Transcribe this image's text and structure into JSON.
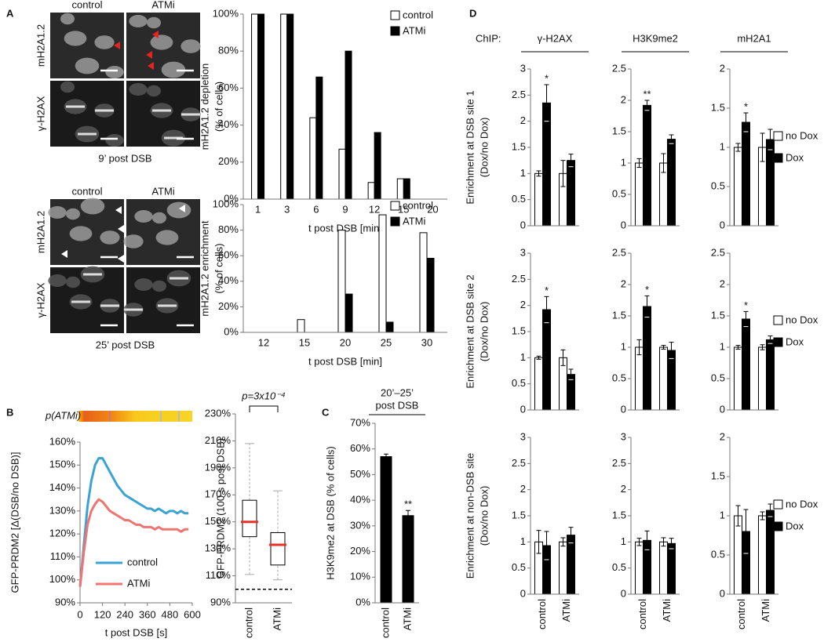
{
  "panel_labels": [
    "A",
    "B",
    "C",
    "D"
  ],
  "micrographs": [
    {
      "columns": [
        "control",
        "ATMi"
      ],
      "rows": [
        "mH2A1.2",
        "γ-H2AX"
      ],
      "caption": "9’ post DSB"
    },
    {
      "columns": [
        "control",
        "ATMi"
      ],
      "rows": [
        "mH2A1.2",
        "γ-H2AX"
      ],
      "caption": "25’ post DSB"
    }
  ],
  "panel_d": {
    "prefix": "ChIP:",
    "columns": [
      "γ-H2AX",
      "H3K9me2",
      "mH2A1"
    ]
  },
  "chart_data": [
    {
      "type": "bar",
      "ylabel": [
        "mH2A1.2 depletion",
        "(% of cells)"
      ],
      "xlabel": "t post DSB [min]",
      "categories": [
        "1",
        "3",
        "6",
        "9",
        "12",
        "15",
        "20"
      ],
      "series": [
        {
          "name": "control",
          "color": "#ffffff",
          "values": [
            100,
            100,
            44,
            27,
            9,
            11,
            0
          ]
        },
        {
          "name": "ATMi",
          "color": "#000000",
          "values": [
            100,
            100,
            66,
            80,
            36,
            11,
            0
          ]
        }
      ],
      "ylim": [
        0,
        100
      ],
      "yticks": [
        {
          "value": 0,
          "label": "0%"
        },
        {
          "value": 20,
          "label": "20%"
        },
        {
          "value": 40,
          "label": "40%"
        },
        {
          "value": 60,
          "label": "60%"
        },
        {
          "value": 80,
          "label": "80%"
        },
        {
          "value": 100,
          "label": "100%"
        }
      ],
      "legend": "upper right"
    },
    {
      "type": "bar",
      "ylabel": [
        "mH2A1.2 enrichment",
        "(% of cells)"
      ],
      "xlabel": "t post DSB [min]",
      "categories": [
        "12",
        "15",
        "20",
        "25",
        "30"
      ],
      "series": [
        {
          "name": "control",
          "color": "#ffffff",
          "values": [
            0,
            10,
            80,
            92,
            78
          ]
        },
        {
          "name": "ATMi",
          "color": "#000000",
          "values": [
            0,
            0,
            30,
            8,
            58
          ]
        }
      ],
      "ylim": [
        0,
        100
      ],
      "yticks": [
        {
          "value": 0,
          "label": "0%"
        },
        {
          "value": 20,
          "label": "20%"
        },
        {
          "value": 40,
          "label": "40%"
        },
        {
          "value": 60,
          "label": "60%"
        },
        {
          "value": 80,
          "label": "80%"
        },
        {
          "value": 100,
          "label": "100%"
        }
      ],
      "legend": "upper right"
    },
    {
      "type": "line",
      "annotation": "p(ATMi)",
      "ylabel": "GFP-PRDM2 [Δ(DSB/no DSB)]",
      "xlabel": "t post DSB [s]",
      "x": [
        0,
        20,
        40,
        60,
        80,
        100,
        120,
        140,
        160,
        180,
        200,
        220,
        240,
        260,
        280,
        300,
        320,
        340,
        360,
        380,
        400,
        420,
        440,
        460,
        480,
        500,
        520,
        540,
        560,
        580
      ],
      "series": [
        {
          "name": "control",
          "color": "#3aa3d4",
          "values": [
            97,
            115,
            132,
            143,
            150,
            153,
            153,
            150,
            147,
            144,
            141,
            139,
            137,
            136,
            135,
            134,
            133,
            132,
            131,
            131,
            130,
            131,
            130,
            129,
            130,
            130,
            129,
            130,
            129,
            129
          ]
        },
        {
          "name": "ATMi",
          "color": "#f07470",
          "values": [
            97,
            112,
            124,
            130,
            133,
            135,
            134,
            132,
            130,
            129,
            128,
            127,
            126,
            126,
            125,
            124,
            124,
            123,
            123,
            123,
            122,
            123,
            122,
            122,
            122,
            122,
            122,
            121,
            122,
            122
          ]
        }
      ],
      "xlim": [
        0,
        600
      ],
      "xticks": [
        0,
        120,
        240,
        360,
        480,
        600
      ],
      "ylim": [
        90,
        160
      ],
      "yticks": [
        {
          "value": 90,
          "label": "90%"
        },
        {
          "value": 100,
          "label": "100%"
        },
        {
          "value": 110,
          "label": "110%"
        },
        {
          "value": 120,
          "label": "120%"
        },
        {
          "value": 130,
          "label": "130%"
        },
        {
          "value": 140,
          "label": "140%"
        },
        {
          "value": 150,
          "label": "150%"
        },
        {
          "value": 160,
          "label": "160%"
        }
      ],
      "legend": "lower left"
    },
    {
      "type": "box",
      "ylabel": "GFP-PRDM2 (100 s post DSB)",
      "annotation": "p=3x10⁻⁴",
      "categories": [
        "control",
        "ATMi"
      ],
      "boxes": [
        {
          "whislo": 111,
          "q1": 139,
          "med": 150,
          "q3": 166,
          "whishi": 208
        },
        {
          "whislo": 107,
          "q1": 118,
          "med": 133,
          "q3": 142,
          "whishi": 173
        }
      ],
      "median_color": "#e8312a",
      "whisker_color": "#aaaaaa",
      "reference_line": 100,
      "ylim": [
        90,
        230
      ],
      "yticks": [
        {
          "value": 90,
          "label": "90%"
        },
        {
          "value": 110,
          "label": "110%"
        },
        {
          "value": 130,
          "label": "130%"
        },
        {
          "value": 150,
          "label": "150%"
        },
        {
          "value": 170,
          "label": "170%"
        },
        {
          "value": 190,
          "label": "190%"
        },
        {
          "value": 210,
          "label": "210%"
        },
        {
          "value": 230,
          "label": "230%"
        }
      ]
    },
    {
      "type": "bar",
      "header": [
        "20’–25’",
        "post DSB"
      ],
      "ylabel": "H3K9me2 at DSB (% of cells)",
      "categories": [
        "control",
        "ATMi"
      ],
      "series": [
        {
          "color": "#000000",
          "values": [
            57,
            34
          ],
          "errors": [
            1,
            2
          ],
          "significance": [
            null,
            "**"
          ]
        }
      ],
      "ylim": [
        0,
        70
      ],
      "yticks": [
        {
          "value": 0,
          "label": "0%"
        },
        {
          "value": 10,
          "label": "10%"
        },
        {
          "value": 20,
          "label": "20%"
        },
        {
          "value": 30,
          "label": "30%"
        },
        {
          "value": 40,
          "label": "40%"
        },
        {
          "value": 50,
          "label": "50%"
        },
        {
          "value": 60,
          "label": "60%"
        },
        {
          "value": 70,
          "label": "70%"
        }
      ]
    },
    {
      "type": "bar",
      "ylabel": [
        "Enrichment at DSB site 1",
        "(Dox/no Dox)"
      ],
      "series": [
        {
          "color": "#ffffff",
          "values": [
            1,
            1
          ],
          "errors": [
            0.05,
            0.25
          ]
        },
        {
          "color": "#000000",
          "values": [
            2.35,
            1.25
          ],
          "errors": [
            0.35,
            0.12
          ],
          "significance": [
            "*",
            null
          ]
        }
      ],
      "ylim": [
        0,
        3
      ],
      "yticks": [
        0,
        0.5,
        1,
        1.5,
        2,
        2.5,
        3
      ]
    },
    {
      "type": "bar",
      "series": [
        {
          "color": "#ffffff",
          "values": [
            1,
            1
          ],
          "errors": [
            0.07,
            0.15
          ]
        },
        {
          "color": "#000000",
          "values": [
            1.92,
            1.38
          ],
          "errors": [
            0.08,
            0.07
          ],
          "significance": [
            "**",
            null
          ]
        }
      ],
      "ylim": [
        0,
        2.5
      ],
      "yticks": [
        0,
        0.5,
        1,
        1.5,
        2,
        2.5
      ]
    },
    {
      "type": "bar",
      "legend": "right",
      "series": [
        {
          "name": "no Dox",
          "color": "#ffffff",
          "values": [
            1,
            1
          ],
          "errors": [
            0.05,
            0.18
          ]
        },
        {
          "name": "Dox",
          "color": "#000000",
          "values": [
            1.32,
            1.1
          ],
          "errors": [
            0.12,
            0.13
          ],
          "significance": [
            "*",
            null
          ]
        }
      ],
      "ylim": [
        0,
        2
      ],
      "yticks": [
        0,
        0.5,
        1,
        1.5,
        2
      ]
    },
    {
      "type": "bar",
      "ylabel": [
        "Enrichment at DSB site 2",
        "(Dox/no Dox)"
      ],
      "series": [
        {
          "color": "#ffffff",
          "values": [
            1,
            1
          ],
          "errors": [
            0.03,
            0.15
          ]
        },
        {
          "color": "#000000",
          "values": [
            1.92,
            0.68
          ],
          "errors": [
            0.25,
            0.1
          ],
          "significance": [
            "*",
            null
          ]
        }
      ],
      "ylim": [
        0,
        3
      ],
      "yticks": [
        0,
        0.5,
        1,
        1.5,
        2,
        2.5,
        3
      ]
    },
    {
      "type": "bar",
      "series": [
        {
          "color": "#ffffff",
          "values": [
            1,
            1
          ],
          "errors": [
            0.12,
            0.03
          ]
        },
        {
          "color": "#000000",
          "values": [
            1.65,
            0.95
          ],
          "errors": [
            0.17,
            0.13
          ],
          "significance": [
            "*",
            null
          ]
        }
      ],
      "ylim": [
        0,
        2.5
      ],
      "yticks": [
        0,
        0.5,
        1,
        1.5,
        2,
        2.5
      ]
    },
    {
      "type": "bar",
      "legend": "right",
      "series": [
        {
          "name": "no Dox",
          "color": "#ffffff",
          "values": [
            1,
            1
          ],
          "errors": [
            0.03,
            0.04
          ]
        },
        {
          "name": "Dox",
          "color": "#000000",
          "values": [
            1.45,
            1.12
          ],
          "errors": [
            0.12,
            0.06
          ],
          "significance": [
            "*",
            null
          ]
        }
      ],
      "ylim": [
        0,
        2.5
      ],
      "yticks": [
        0,
        0.5,
        1,
        1.5,
        2,
        2.5
      ]
    },
    {
      "type": "bar",
      "ylabel": [
        "Enrichment at non-DSB site",
        "(Dox/no Dox)"
      ],
      "categories": [
        "control",
        "ATMi"
      ],
      "series": [
        {
          "color": "#ffffff",
          "values": [
            1,
            1
          ],
          "errors": [
            0.22,
            0.08
          ]
        },
        {
          "color": "#000000",
          "values": [
            0.93,
            1.13
          ],
          "errors": [
            0.27,
            0.15
          ]
        }
      ],
      "ylim": [
        0,
        3
      ],
      "yticks": [
        0,
        0.5,
        1,
        1.5,
        2,
        2.5,
        3
      ]
    },
    {
      "type": "bar",
      "categories": [
        "control",
        "ATMi"
      ],
      "series": [
        {
          "color": "#ffffff",
          "values": [
            1,
            1
          ],
          "errors": [
            0.07,
            0.08
          ]
        },
        {
          "color": "#000000",
          "values": [
            1.03,
            0.97
          ],
          "errors": [
            0.18,
            0.1
          ]
        }
      ],
      "ylim": [
        0,
        3
      ],
      "yticks": [
        0,
        0.5,
        1,
        1.5,
        2,
        2.5,
        3
      ]
    },
    {
      "type": "bar",
      "legend": "right",
      "categories": [
        "control",
        "ATMi"
      ],
      "series": [
        {
          "name": "no Dox",
          "color": "#ffffff",
          "values": [
            1,
            1
          ],
          "errors": [
            0.13,
            0.05
          ]
        },
        {
          "name": "Dox",
          "color": "#000000",
          "values": [
            0.8,
            1.07
          ],
          "errors": [
            0.28,
            0.08
          ]
        }
      ],
      "ylim": [
        0,
        2
      ],
      "yticks": [
        0,
        0.5,
        1,
        1.5,
        2
      ]
    }
  ]
}
